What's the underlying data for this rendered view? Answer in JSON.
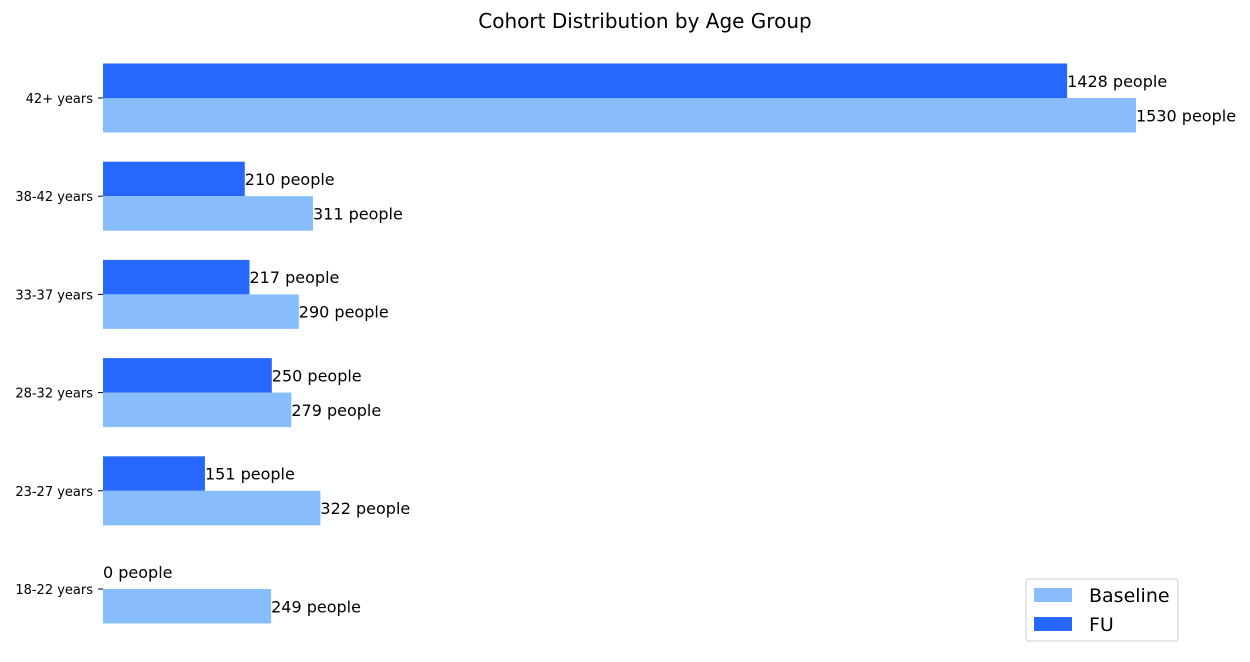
{
  "chart_data": {
    "type": "bar",
    "orientation": "horizontal",
    "title": "Cohort Distribution by Age Group",
    "xlabel": "",
    "ylabel": "",
    "categories": [
      "42+ years",
      "38-42 years",
      "33-37 years",
      "28-32 years",
      "23-27 years",
      "18-22 years"
    ],
    "series": [
      {
        "name": "Baseline",
        "color": "#87bdfd",
        "values": [
          1530,
          311,
          290,
          279,
          322,
          249
        ],
        "labels": [
          "1530 people",
          "311 people",
          "290 people",
          "279 people",
          "322 people",
          "249 people"
        ]
      },
      {
        "name": "FU",
        "color": "#2668fd",
        "values": [
          1428,
          210,
          217,
          250,
          151,
          0
        ],
        "labels": [
          "1428 people",
          "210 people",
          "217 people",
          "250 people",
          "151 people",
          "0 people"
        ]
      }
    ],
    "xlim": [
      0,
      1530
    ],
    "grid": false,
    "legend_position": "bottom-right"
  }
}
